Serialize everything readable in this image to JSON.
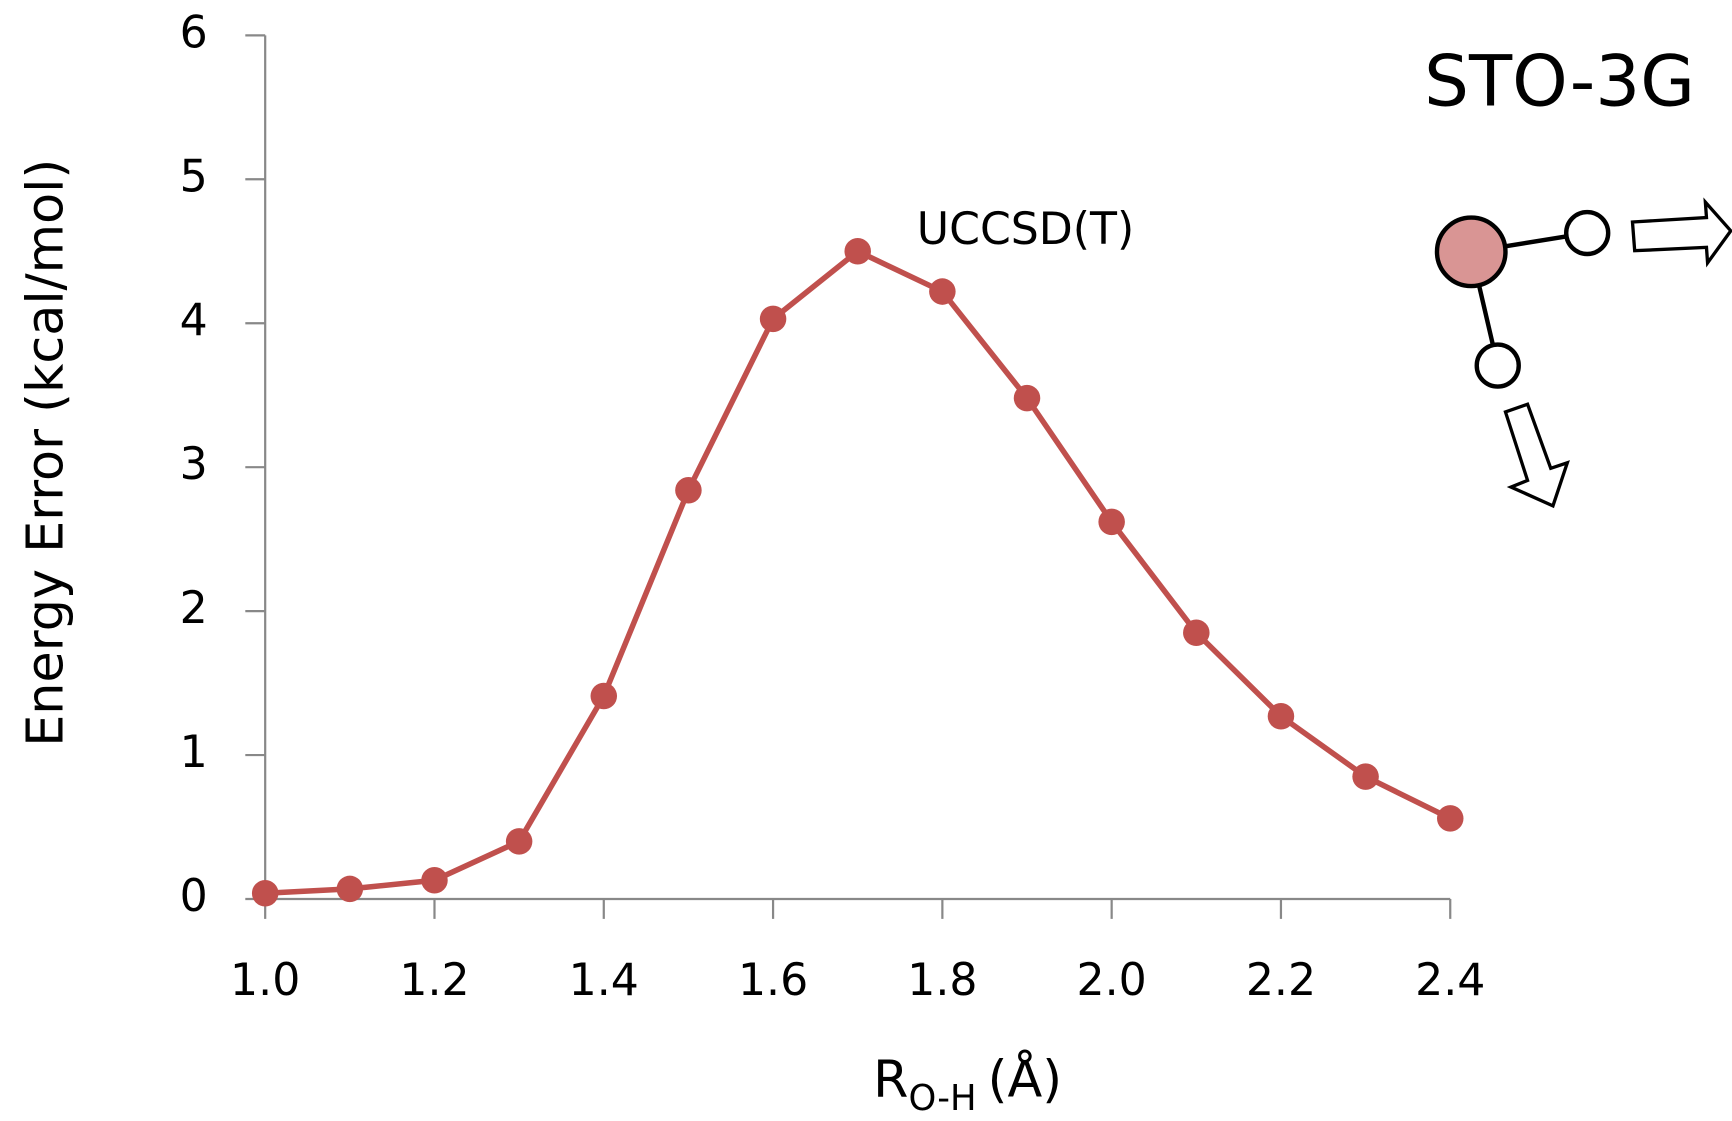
{
  "chart_data": {
    "type": "line",
    "title": "STO-3G",
    "x_label_parts": [
      "R",
      "O-H",
      "(Å)"
    ],
    "y_label": "Energy Error (kcal/mol)",
    "x": [
      1.0,
      1.1,
      1.2,
      1.3,
      1.4,
      1.5,
      1.6,
      1.7,
      1.8,
      1.9,
      2.0,
      2.1,
      2.2,
      2.3,
      2.4
    ],
    "series": [
      {
        "name": "UCCSD(T)",
        "color": "#c0504d",
        "values": [
          0.04,
          0.07,
          0.13,
          0.4,
          1.41,
          2.84,
          4.03,
          4.5,
          4.22,
          3.48,
          2.62,
          1.85,
          1.27,
          0.85,
          0.56
        ]
      }
    ],
    "xlim": [
      1.0,
      2.4
    ],
    "xticks": [
      {
        "value": 1.0,
        "label": "1.0"
      },
      {
        "value": 1.2,
        "label": "1.2"
      },
      {
        "value": 1.4,
        "label": "1.4"
      },
      {
        "value": 1.6,
        "label": "1.6"
      },
      {
        "value": 1.8,
        "label": "1.8"
      },
      {
        "value": 2.0,
        "label": "2.0"
      },
      {
        "value": 2.2,
        "label": "2.2"
      },
      {
        "value": 2.4,
        "label": "2.4"
      }
    ],
    "ylim": [
      0,
      6
    ],
    "yticks": [
      0,
      1,
      2,
      3,
      4,
      5,
      6
    ],
    "grid": false
  }
}
